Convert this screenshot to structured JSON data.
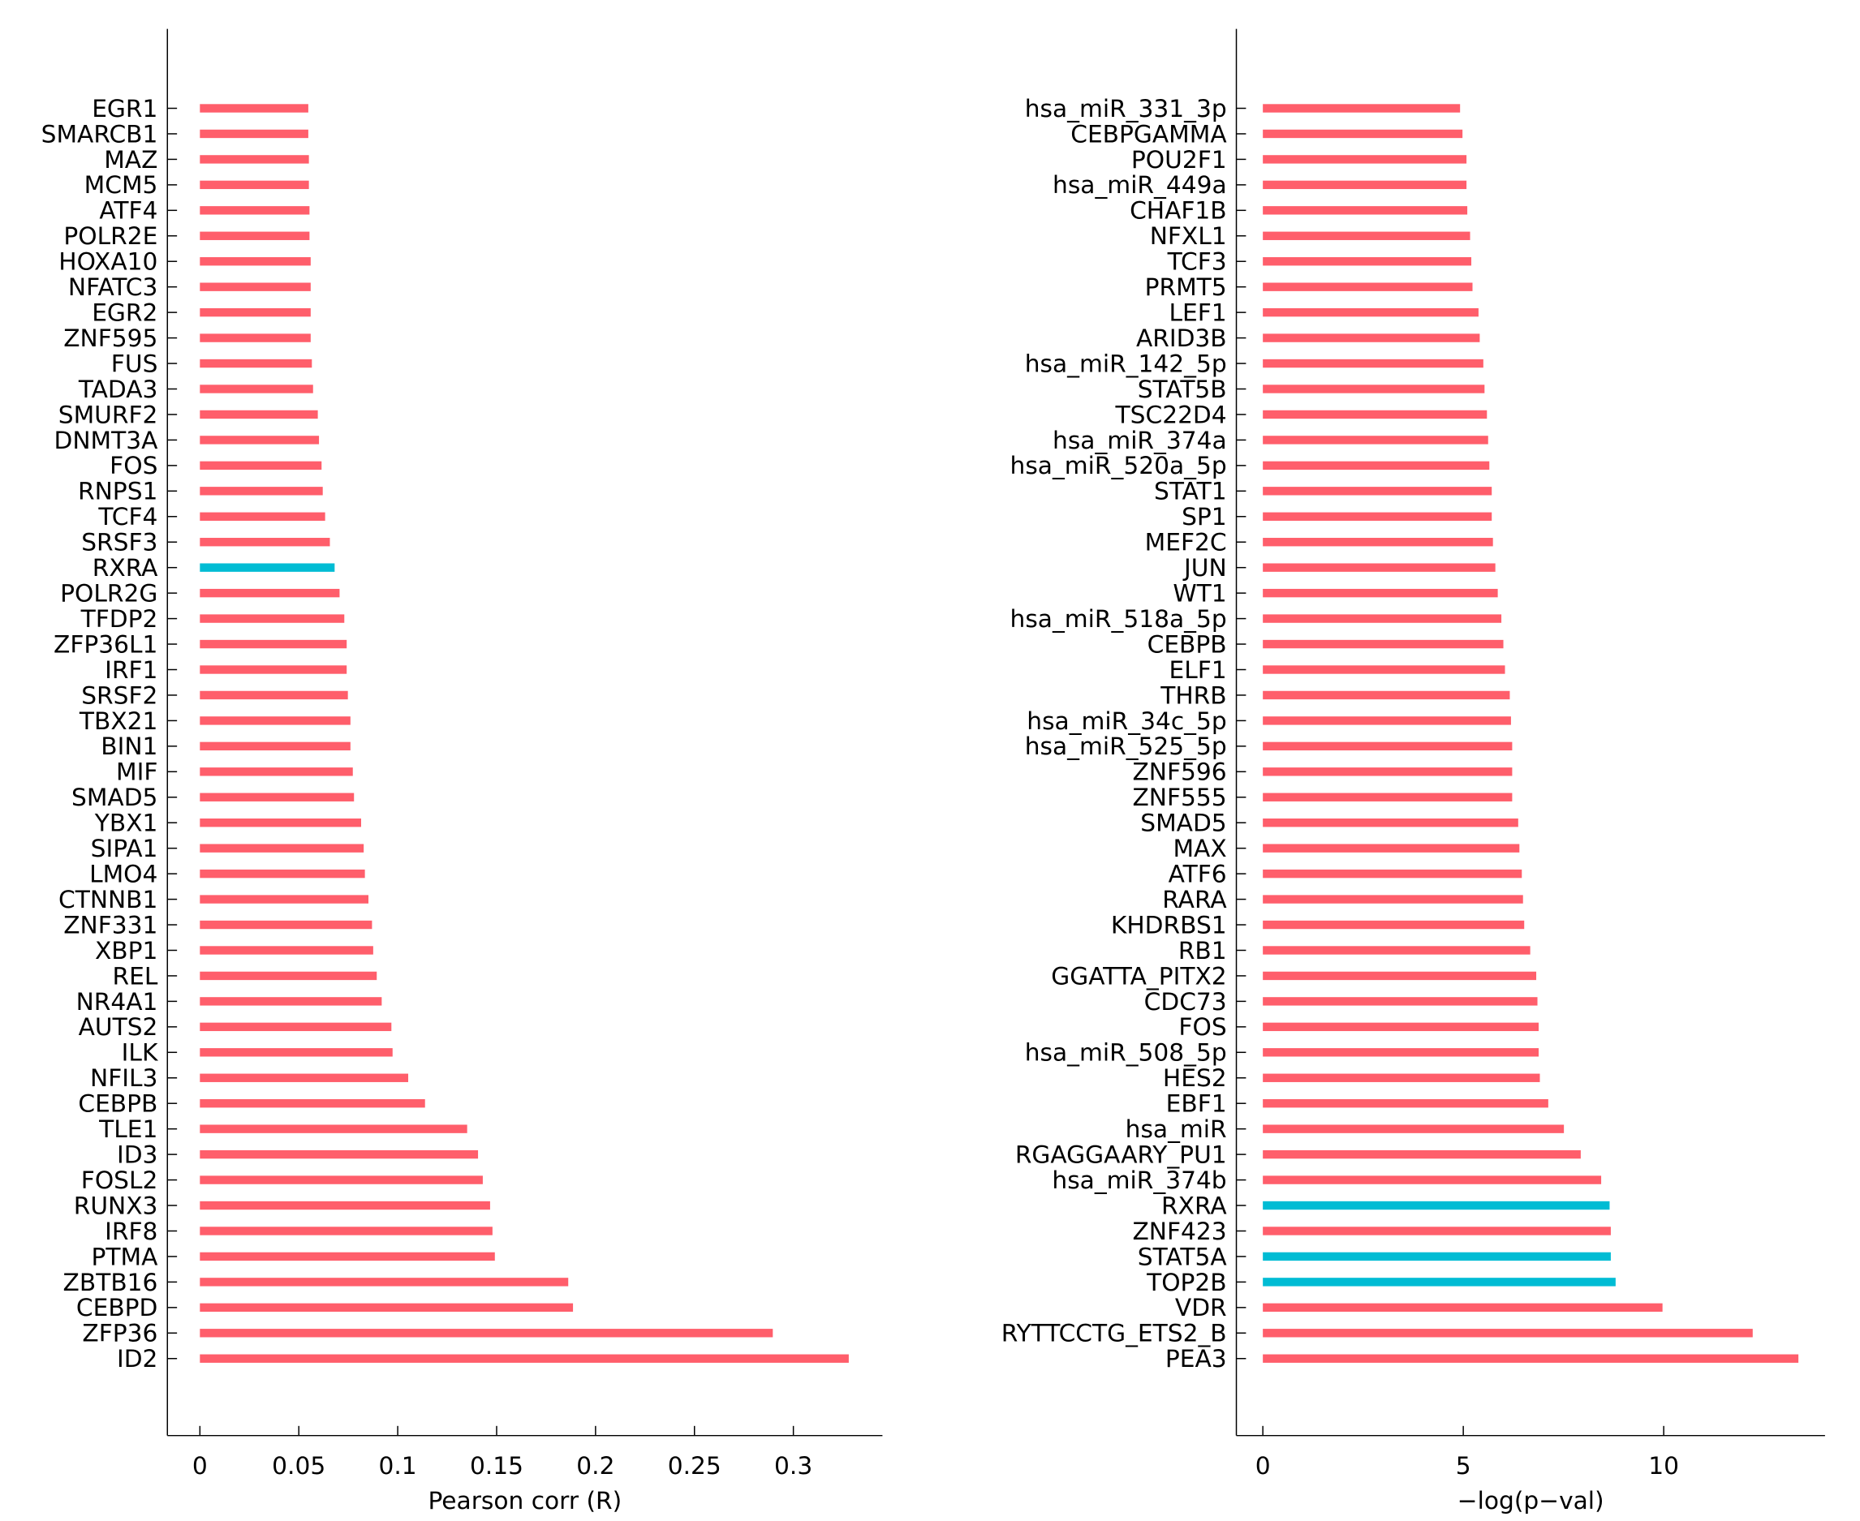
{
  "chart_data": [
    {
      "type": "bar",
      "orientation": "horizontal",
      "xlabel": "Pearson corr (R)",
      "xlim": [
        -0.015,
        0.34
      ],
      "xticks": [
        "0",
        "0.05",
        "0.1",
        "0.15",
        "0.2",
        "0.25",
        "0.3"
      ],
      "xtick_values": [
        0,
        0.05,
        0.1,
        0.15,
        0.2,
        0.25,
        0.3
      ],
      "colors": {
        "default": "#ff5e6b",
        "highlight": "#00bcd4"
      },
      "highlighted": [
        "RXRA"
      ],
      "categories": [
        "EGR1",
        "SMARCB1",
        "MAZ",
        "MCM5",
        "ATF4",
        "POLR2E",
        "HOXA10",
        "NFATC3",
        "EGR2",
        "ZNF595",
        "FUS",
        "TADA3",
        "SMURF2",
        "DNMT3A",
        "FOS",
        "RNPS1",
        "TCF4",
        "SRSF3",
        "RXRA",
        "POLR2G",
        "TFDP2",
        "ZFP36L1",
        "IRF1",
        "SRSF2",
        "TBX21",
        "BIN1",
        "MIF",
        "SMAD5",
        "YBX1",
        "SIPA1",
        "LMO4",
        "CTNNB1",
        "ZNF331",
        "XBP1",
        "REL",
        "NR4A1",
        "AUTS2",
        "ILK",
        "NFIL3",
        "CEBPB",
        "TLE1",
        "ID3",
        "FOSL2",
        "RUNX3",
        "IRF8",
        "PTMA",
        "ZBTB16",
        "CEBPD",
        "ZFP36",
        "ID2"
      ],
      "values": [
        0.0548,
        0.0548,
        0.0551,
        0.0551,
        0.0554,
        0.0554,
        0.056,
        0.056,
        0.056,
        0.056,
        0.0566,
        0.0572,
        0.0596,
        0.0602,
        0.0615,
        0.0621,
        0.0633,
        0.0657,
        0.0681,
        0.0706,
        0.073,
        0.0742,
        0.0742,
        0.0748,
        0.0761,
        0.0761,
        0.0773,
        0.0779,
        0.0815,
        0.0828,
        0.0834,
        0.0852,
        0.087,
        0.0876,
        0.0894,
        0.0919,
        0.0968,
        0.0974,
        0.1053,
        0.1138,
        0.1351,
        0.1406,
        0.143,
        0.1467,
        0.1479,
        0.1491,
        0.1862,
        0.1886,
        0.2896,
        0.328
      ]
    },
    {
      "type": "bar",
      "orientation": "horizontal",
      "xlabel": "−log(p−val)",
      "xlim": [
        -0.65,
        14.0
      ],
      "xticks": [
        "0",
        "5",
        "10"
      ],
      "xtick_values": [
        0,
        5,
        10
      ],
      "colors": {
        "default": "#ff5e6b",
        "highlight": "#00bcd4"
      },
      "highlighted": [
        "RXRA",
        "STAT5A",
        "TOP2B"
      ],
      "categories": [
        "hsa_miR_331_3p",
        "CEBPGAMMA",
        "POU2F1",
        "hsa_miR_449a",
        "CHAF1B",
        "NFXL1",
        "TCF3",
        "PRMT5",
        "LEF1",
        "ARID3B",
        "hsa_miR_142_5p",
        "STAT5B",
        "TSC22D4",
        "hsa_miR_374a",
        "hsa_miR_520a_5p",
        "STAT1",
        "SP1",
        "MEF2C",
        "JUN",
        "WT1",
        "hsa_miR_518a_5p",
        "CEBPB",
        "ELF1",
        "THRB",
        "hsa_miR_34c_5p",
        "hsa_miR_525_5p",
        "ZNF596",
        "ZNF555",
        "SMAD5",
        "MAX",
        "ATF6",
        "RARA",
        "KHDRBS1",
        "RB1",
        "GGATTA_PITX2",
        "CDC73",
        "FOS",
        "hsa_miR_508_5p",
        "HES2",
        "EBF1",
        "hsa_miR",
        "RGAGGAARY_PU1",
        "hsa_miR_374b",
        "RXRA",
        "ZNF423",
        "STAT5A",
        "TOP2B",
        "VDR",
        "RYTTCCTG_ETS2_B",
        "PEA3"
      ],
      "values": [
        4.92,
        4.98,
        5.08,
        5.08,
        5.1,
        5.17,
        5.2,
        5.23,
        5.38,
        5.41,
        5.5,
        5.53,
        5.59,
        5.62,
        5.65,
        5.71,
        5.71,
        5.74,
        5.8,
        5.86,
        5.95,
        6.0,
        6.04,
        6.16,
        6.19,
        6.22,
        6.22,
        6.22,
        6.37,
        6.4,
        6.46,
        6.49,
        6.52,
        6.67,
        6.82,
        6.85,
        6.88,
        6.88,
        6.91,
        7.12,
        7.51,
        7.93,
        8.44,
        8.65,
        8.68,
        8.68,
        8.8,
        9.97,
        12.22,
        13.36
      ]
    }
  ]
}
